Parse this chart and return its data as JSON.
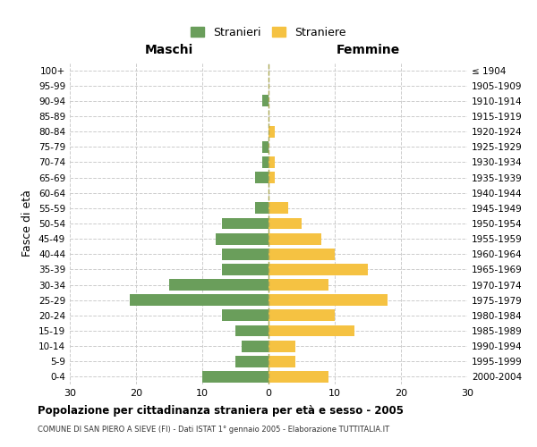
{
  "age_groups": [
    "0-4",
    "5-9",
    "10-14",
    "15-19",
    "20-24",
    "25-29",
    "30-34",
    "35-39",
    "40-44",
    "45-49",
    "50-54",
    "55-59",
    "60-64",
    "65-69",
    "70-74",
    "75-79",
    "80-84",
    "85-89",
    "90-94",
    "95-99",
    "100+"
  ],
  "birth_years": [
    "2000-2004",
    "1995-1999",
    "1990-1994",
    "1985-1989",
    "1980-1984",
    "1975-1979",
    "1970-1974",
    "1965-1969",
    "1960-1964",
    "1955-1959",
    "1950-1954",
    "1945-1949",
    "1940-1944",
    "1935-1939",
    "1930-1934",
    "1925-1929",
    "1920-1924",
    "1915-1919",
    "1910-1914",
    "1905-1909",
    "≤ 1904"
  ],
  "males": [
    10,
    5,
    4,
    5,
    7,
    21,
    15,
    7,
    7,
    8,
    7,
    2,
    0,
    2,
    1,
    1,
    0,
    0,
    1,
    0,
    0
  ],
  "females": [
    9,
    4,
    4,
    13,
    10,
    18,
    9,
    15,
    10,
    8,
    5,
    3,
    0,
    1,
    1,
    0,
    1,
    0,
    0,
    0,
    0
  ],
  "male_color": "#6a9e5b",
  "female_color": "#f5c242",
  "background_color": "#ffffff",
  "grid_color": "#cccccc",
  "title": "Popolazione per cittadinanza straniera per età e sesso - 2005",
  "subtitle": "COMUNE DI SAN PIERO A SIEVE (FI) - Dati ISTAT 1° gennaio 2005 - Elaborazione TUTTITALIA.IT",
  "xlabel_left": "Maschi",
  "xlabel_right": "Femmine",
  "ylabel_left": "Fasce di età",
  "legend_males": "Stranieri",
  "legend_females": "Straniere",
  "xlim": 30
}
